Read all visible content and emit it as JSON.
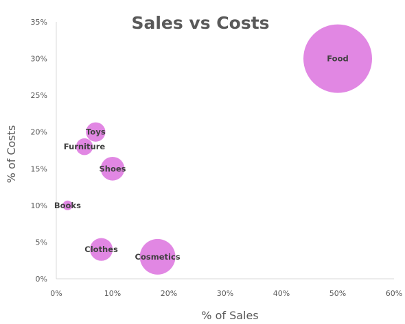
{
  "chart_data": {
    "type": "scatter",
    "title": "Sales vs Costs",
    "xlabel": "% of Sales",
    "ylabel": "% of Costs",
    "xlim": [
      0,
      60
    ],
    "ylim": [
      0,
      35
    ],
    "xticks": [
      0,
      10,
      20,
      30,
      40,
      50,
      60
    ],
    "yticks": [
      0,
      5,
      10,
      15,
      20,
      25,
      30,
      35
    ],
    "xtick_labels": [
      "0%",
      "10%",
      "20%",
      "30%",
      "40%",
      "50%",
      "60%"
    ],
    "ytick_labels": [
      "0%",
      "5%",
      "10%",
      "15%",
      "20%",
      "25%",
      "30%",
      "35%"
    ],
    "grid": false,
    "bubble_color": "#e187e3",
    "points": [
      {
        "label": "Food",
        "x": 50,
        "y": 30,
        "size": 100
      },
      {
        "label": "Toys",
        "x": 7,
        "y": 20,
        "size": 8
      },
      {
        "label": "Furniture",
        "x": 5,
        "y": 18,
        "size": 6
      },
      {
        "label": "Shoes",
        "x": 10,
        "y": 15,
        "size": 12
      },
      {
        "label": "Books",
        "x": 2,
        "y": 10,
        "size": 2
      },
      {
        "label": "Clothes",
        "x": 8,
        "y": 4,
        "size": 11
      },
      {
        "label": "Cosmetics",
        "x": 18,
        "y": 3,
        "size": 27
      }
    ]
  }
}
